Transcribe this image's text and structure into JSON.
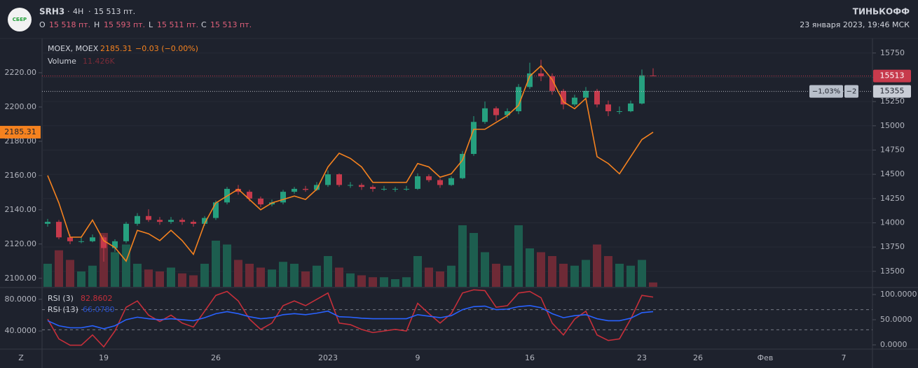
{
  "header": {
    "logo": "СБЕР",
    "ticker": "SRH3",
    "interval": "4H",
    "last": "15 513 пт.",
    "o_label": "O",
    "o": "15 518 пт.",
    "h_label": "H",
    "h": "15 593 пт.",
    "l_label": "L",
    "l": "15 511 пт.",
    "c_label": "C",
    "c": "15 513 пт.",
    "brand": "ТИНЬКОФФ",
    "datetime": "23 января 2023, 19:46 МСК",
    "corner": "Z"
  },
  "chart_data": [
    {
      "type": "candlestick",
      "up_color": "#26a07f",
      "down_color": "#c73a4c",
      "categories": [
        null,
        null,
        null,
        null,
        null,
        "19",
        null,
        null,
        null,
        null,
        null,
        null,
        null,
        null,
        null,
        "26",
        null,
        null,
        null,
        null,
        null,
        null,
        null,
        null,
        null,
        "2023",
        null,
        null,
        null,
        null,
        null,
        null,
        null,
        "9",
        null,
        null,
        null,
        null,
        null,
        null,
        null,
        null,
        null,
        "16",
        null,
        null,
        null,
        null,
        null,
        null,
        null,
        null,
        null,
        "23",
        null,
        null,
        null,
        null,
        "26",
        null,
        null,
        null,
        null,
        null,
        "Фев",
        null,
        null,
        null,
        null,
        null,
        null,
        "7",
        null,
        null
      ],
      "ohlc": [
        [
          13990,
          14040,
          13960,
          14010
        ],
        [
          14010,
          14030,
          13830,
          13850
        ],
        [
          13850,
          13880,
          13780,
          13810
        ],
        [
          13810,
          13860,
          13790,
          13810
        ],
        [
          13810,
          13880,
          13800,
          13850
        ],
        [
          13850,
          13870,
          13600,
          13740
        ],
        [
          13740,
          13830,
          13700,
          13810
        ],
        [
          13810,
          14010,
          13790,
          13990
        ],
        [
          13990,
          14100,
          13970,
          14070
        ],
        [
          14070,
          14140,
          14010,
          14030
        ],
        [
          14030,
          14060,
          13980,
          14010
        ],
        [
          14010,
          14060,
          13990,
          14030
        ],
        [
          14030,
          14050,
          13980,
          14010
        ],
        [
          14010,
          14030,
          13960,
          13990
        ],
        [
          13990,
          14070,
          13970,
          14050
        ],
        [
          14050,
          14230,
          14030,
          14210
        ],
        [
          14210,
          14370,
          14190,
          14350
        ],
        [
          14350,
          14390,
          14290,
          14320
        ],
        [
          14320,
          14340,
          14220,
          14250
        ],
        [
          14250,
          14270,
          14160,
          14190
        ],
        [
          14190,
          14240,
          14170,
          14210
        ],
        [
          14210,
          14340,
          14190,
          14320
        ],
        [
          14320,
          14370,
          14300,
          14350
        ],
        [
          14350,
          14380,
          14320,
          14340
        ],
        [
          14340,
          14420,
          14330,
          14390
        ],
        [
          14390,
          14540,
          14370,
          14500
        ],
        [
          14500,
          14510,
          14370,
          14390
        ],
        [
          14390,
          14420,
          14360,
          14390
        ],
        [
          14390,
          14410,
          14340,
          14370
        ],
        [
          14370,
          14390,
          14320,
          14350
        ],
        [
          14350,
          14380,
          14330,
          14350
        ],
        [
          14350,
          14370,
          14320,
          14350
        ],
        [
          14350,
          14380,
          14330,
          14350
        ],
        [
          14350,
          14510,
          14340,
          14480
        ],
        [
          14480,
          14500,
          14420,
          14440
        ],
        [
          14440,
          14460,
          14360,
          14390
        ],
        [
          14390,
          14480,
          14380,
          14460
        ],
        [
          14460,
          14740,
          14450,
          14710
        ],
        [
          14710,
          15100,
          14690,
          15040
        ],
        [
          15040,
          15250,
          15020,
          15180
        ],
        [
          15180,
          15200,
          15050,
          15110
        ],
        [
          15110,
          15180,
          15080,
          15150
        ],
        [
          15150,
          15430,
          15120,
          15400
        ],
        [
          15400,
          15650,
          15380,
          15540
        ],
        [
          15540,
          15680,
          15460,
          15510
        ],
        [
          15510,
          15540,
          15320,
          15360
        ],
        [
          15360,
          15380,
          15170,
          15220
        ],
        [
          15220,
          15320,
          15200,
          15290
        ],
        [
          15290,
          15400,
          15270,
          15360
        ],
        [
          15360,
          15380,
          15190,
          15220
        ],
        [
          15220,
          15260,
          15100,
          15150
        ],
        [
          15150,
          15200,
          15120,
          15150
        ],
        [
          15150,
          15260,
          15140,
          15230
        ],
        [
          15230,
          15580,
          15220,
          15520
        ],
        [
          15518,
          15593,
          15511,
          15513
        ],
        null,
        null,
        null,
        null,
        null,
        null,
        null,
        null,
        null,
        null,
        null,
        null,
        null,
        null,
        null,
        null,
        null,
        null,
        null
      ],
      "axis": "y2",
      "volume_name": "Volume",
      "volume_value_label": "11.426K",
      "volume": [
        60,
        95,
        70,
        40,
        55,
        140,
        90,
        110,
        60,
        45,
        40,
        50,
        35,
        30,
        60,
        120,
        110,
        70,
        60,
        50,
        45,
        65,
        60,
        40,
        55,
        80,
        50,
        35,
        30,
        25,
        25,
        20,
        25,
        80,
        50,
        40,
        55,
        160,
        140,
        90,
        60,
        55,
        160,
        100,
        90,
        80,
        60,
        55,
        70,
        110,
        80,
        60,
        55,
        70,
        11.426,
        null,
        null,
        null,
        null,
        null,
        null,
        null,
        null,
        null,
        null,
        null,
        null,
        null,
        null,
        null,
        null,
        null,
        null,
        null
      ],
      "series": [
        {
          "name": "MOEX, MOEX",
          "color": "#f5821f",
          "axis": "y",
          "value_label": "2185.31",
          "change_label": "−0.03 (−0.00%)",
          "values": [
            2160,
            2144,
            2124,
            2124,
            2134,
            2122,
            2118,
            2110,
            2128,
            2126,
            2122,
            2128,
            2122,
            2114,
            2132,
            2144,
            2148,
            2152,
            2146,
            2140,
            2144,
            2146,
            2148,
            2146,
            2152,
            2165,
            2173,
            2170,
            2165,
            2156,
            2156,
            2156,
            2156,
            2167,
            2165,
            2159,
            2161,
            2169,
            2187,
            2187,
            2191,
            2195,
            2201,
            2218,
            2224,
            2216,
            2203,
            2199,
            2205,
            2171,
            2167,
            2161,
            2171,
            2181,
            2185.31,
            null,
            null,
            null,
            null,
            null,
            null,
            null,
            null,
            null,
            null,
            null,
            null,
            null,
            null,
            null,
            null,
            null,
            null,
            null
          ]
        }
      ],
      "price_lines": [
        {
          "value": 15513,
          "color": "#c73a4c"
        },
        {
          "value": 15355,
          "color": "#b2b5be",
          "change": "−1,03%",
          "qty": "−2"
        }
      ],
      "ylim": [
        2095,
        2240
      ],
      "yticks": [
        {
          "value": 2100,
          "label": "2100.00"
        },
        {
          "value": 2120,
          "label": "2120.00"
        },
        {
          "value": 2140,
          "label": "2140.00"
        },
        {
          "value": 2160,
          "label": "2160.00"
        },
        {
          "value": 2180,
          "label": "2180.00"
        },
        {
          "value": 2200,
          "label": "2200.00"
        },
        {
          "value": 2220,
          "label": "2220.00"
        }
      ],
      "y2lim": [
        13340,
        15900
      ],
      "y2ticks": [
        13500,
        13750,
        14000,
        14250,
        14500,
        14750,
        15000,
        15250,
        15500,
        15750
      ],
      "grid": true
    },
    {
      "type": "line",
      "series": [
        {
          "name": "RSI (3)",
          "color": "#c62f3a",
          "axis": "y",
          "value_label": "82.8602",
          "values": [
            55,
            30,
            22,
            22,
            35,
            20,
            40,
            70,
            78,
            60,
            52,
            60,
            50,
            45,
            65,
            85,
            90,
            78,
            55,
            42,
            50,
            72,
            78,
            72,
            80,
            88,
            50,
            48,
            42,
            38,
            40,
            42,
            40,
            75,
            62,
            50,
            62,
            88,
            92,
            91,
            70,
            72,
            88,
            90,
            82,
            50,
            35,
            55,
            65,
            35,
            28,
            30,
            55,
            85,
            82.8602,
            null,
            null,
            null,
            null,
            null,
            null,
            null,
            null,
            null,
            null,
            null,
            null,
            null,
            null,
            null,
            null,
            null,
            null,
            null
          ]
        },
        {
          "name": "RSI (13)",
          "color": "#2962ff",
          "axis": "y2",
          "value_label": "66.0780",
          "values": [
            48,
            38,
            34,
            34,
            38,
            32,
            38,
            50,
            55,
            52,
            50,
            52,
            50,
            48,
            54,
            62,
            66,
            62,
            56,
            52,
            54,
            60,
            62,
            60,
            63,
            67,
            56,
            55,
            53,
            52,
            52,
            52,
            52,
            60,
            57,
            54,
            58,
            70,
            76,
            77,
            70,
            71,
            76,
            78,
            74,
            62,
            54,
            58,
            60,
            52,
            48,
            48,
            53,
            64,
            66.078,
            null,
            null,
            null,
            null,
            null,
            null,
            null,
            null,
            null,
            null,
            null,
            null,
            null,
            null,
            null,
            null,
            null,
            null,
            null
          ]
        }
      ],
      "ylim": [
        18,
        94
      ],
      "yticks": [
        {
          "value": 40,
          "label": "40.0000"
        },
        {
          "value": 80,
          "label": "80.0000"
        }
      ],
      "y2lim": [
        -7,
        112.5
      ],
      "y2ticks": [
        {
          "value": 0,
          "label": "0.0000"
        },
        {
          "value": 50,
          "label": "50.0000"
        },
        {
          "value": 100,
          "label": "100.0000"
        }
      ],
      "levels": [
        70,
        30
      ]
    }
  ]
}
